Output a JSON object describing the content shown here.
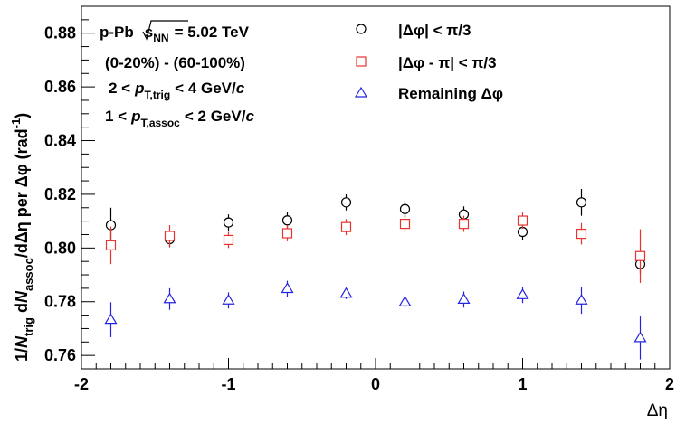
{
  "chart_data": {
    "type": "scatter",
    "xlabel": "Δη",
    "ylabel_parts": {
      "one_over": "1/",
      "N": "N",
      "trig": "trig",
      "dN": " d",
      "N2": "N",
      "assoc": "assoc",
      "rest": "/dΔη per Δφ (rad",
      "exp": "-1",
      "close": ")"
    },
    "xlim": [
      -2,
      2
    ],
    "ylim": [
      0.755,
      0.89
    ],
    "x_ticks": [
      -2,
      -1,
      0,
      1,
      2
    ],
    "y_ticks": [
      0.76,
      0.78,
      0.8,
      0.82,
      0.84,
      0.86,
      0.88
    ],
    "x_tick_labels": [
      "-2",
      "-1",
      "0",
      "1",
      "2"
    ],
    "y_tick_labels": [
      "0.76",
      "0.78",
      "0.80",
      "0.82",
      "0.84",
      "0.86",
      "0.88"
    ],
    "annotations": {
      "system": "p-Pb",
      "sqrt": "s",
      "nn": "NN",
      "energy": "= 5.02 TeV",
      "centrality": "(0-20%) - (60-100%)",
      "ptrig_lo": "2 <",
      "ptrig_p": "p",
      "ptrig_sub": "T,trig",
      "ptrig_hi": "< 4 GeV/",
      "ptrig_c": "c",
      "passoc_lo": "1 <",
      "passoc_p": "p",
      "passoc_sub": "T,assoc",
      "passoc_hi": "< 2 GeV/",
      "passoc_c": "c"
    },
    "series": [
      {
        "name": "|Δφ| < π/3",
        "marker": "circle",
        "color": "#000000",
        "x": [
          -1.8,
          -1.4,
          -1.0,
          -0.6,
          -0.2,
          0.2,
          0.6,
          1.0,
          1.4,
          1.8
        ],
        "y": [
          0.8085,
          0.8033,
          0.8095,
          0.8103,
          0.817,
          0.8145,
          0.8125,
          0.806,
          0.817,
          0.794
        ],
        "err": [
          0.0065,
          0.003,
          0.003,
          0.003,
          0.003,
          0.003,
          0.003,
          0.003,
          0.005,
          0.0035
        ]
      },
      {
        "name": "|Δφ - π| < π/3",
        "marker": "square",
        "color": "#e8322e",
        "x": [
          -1.8,
          -1.4,
          -1.0,
          -0.6,
          -0.2,
          0.2,
          0.6,
          1.0,
          1.4,
          1.8
        ],
        "y": [
          0.801,
          0.8045,
          0.803,
          0.8055,
          0.8078,
          0.809,
          0.809,
          0.8102,
          0.8053,
          0.797
        ],
        "err": [
          0.007,
          0.004,
          0.003,
          0.003,
          0.003,
          0.003,
          0.003,
          0.003,
          0.004,
          0.01
        ]
      },
      {
        "name": "Remaining Δφ",
        "marker": "triangle",
        "color": "#2424e0",
        "x": [
          -1.8,
          -1.4,
          -1.0,
          -0.6,
          -0.2,
          0.2,
          0.6,
          1.0,
          1.4,
          1.8
        ],
        "y": [
          0.7733,
          0.781,
          0.7805,
          0.7848,
          0.783,
          0.7798,
          0.7808,
          0.7825,
          0.7805,
          0.7665
        ],
        "err": [
          0.0065,
          0.004,
          0.003,
          0.003,
          0.002,
          0.002,
          0.003,
          0.003,
          0.005,
          0.008
        ]
      }
    ],
    "legend": [
      {
        "label": "|Δφ| < π/3",
        "marker": "circle",
        "color": "#000000"
      },
      {
        "label": "|Δφ - π| < π/3",
        "marker": "square",
        "color": "#e8322e"
      },
      {
        "label": "Remaining Δφ",
        "marker": "triangle",
        "color": "#2424e0"
      }
    ]
  }
}
